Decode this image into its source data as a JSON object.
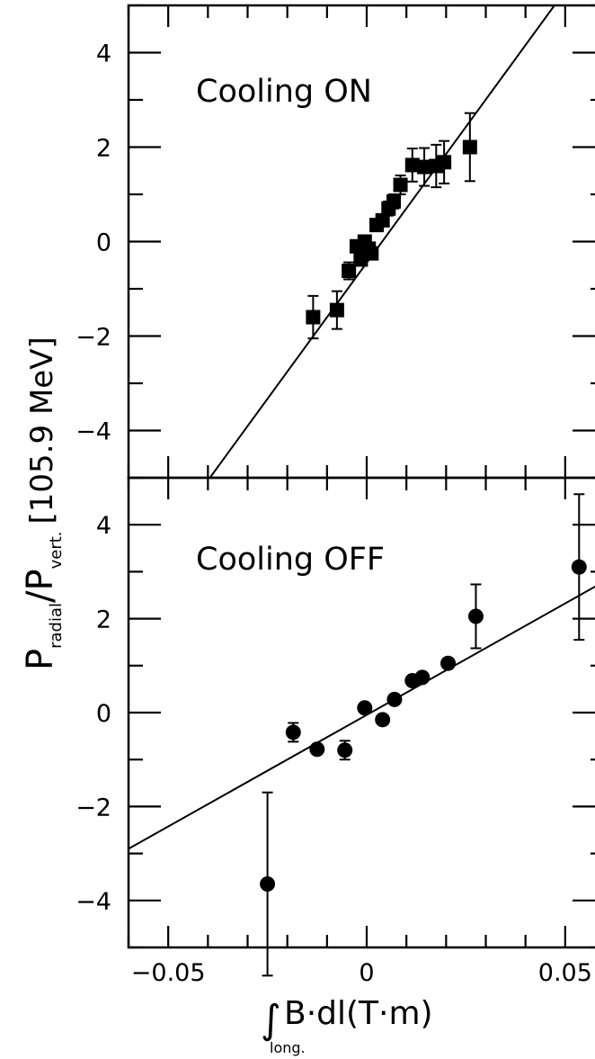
{
  "chart_data": [
    {
      "type": "scatter",
      "panel_label": "Cooling ON",
      "marker": "square",
      "xlim": [
        -0.06,
        0.06
      ],
      "ylim": [
        -5,
        5
      ],
      "yticks": [
        -4,
        -2,
        0,
        2,
        4
      ],
      "ytick_labels": [
        "−4",
        "−2",
        "0",
        "2",
        "4"
      ],
      "points": [
        {
          "x": -0.0135,
          "y": -1.6,
          "err": 0.45
        },
        {
          "x": -0.0075,
          "y": -1.45,
          "err": 0.4
        },
        {
          "x": -0.0045,
          "y": -0.62,
          "err": 0.18
        },
        {
          "x": -0.0025,
          "y": -0.1,
          "err": 0.12
        },
        {
          "x": -0.0015,
          "y": -0.38,
          "err": 0.12
        },
        {
          "x": -0.0005,
          "y": 0.0,
          "err": 0.12
        },
        {
          "x": 0.0005,
          "y": -0.15,
          "err": 0.12
        },
        {
          "x": 0.0012,
          "y": -0.25,
          "err": 0.12
        },
        {
          "x": 0.0025,
          "y": 0.35,
          "err": 0.12
        },
        {
          "x": 0.004,
          "y": 0.45,
          "err": 0.12
        },
        {
          "x": 0.0055,
          "y": 0.7,
          "err": 0.15
        },
        {
          "x": 0.0068,
          "y": 0.85,
          "err": 0.15
        },
        {
          "x": 0.0085,
          "y": 1.2,
          "err": 0.2
        },
        {
          "x": 0.0115,
          "y": 1.62,
          "err": 0.35
        },
        {
          "x": 0.0145,
          "y": 1.58,
          "err": 0.4
        },
        {
          "x": 0.0175,
          "y": 1.6,
          "err": 0.45
        },
        {
          "x": 0.0195,
          "y": 1.68,
          "err": 0.45
        },
        {
          "x": 0.026,
          "y": 2.0,
          "err": 0.72
        }
      ],
      "fit_line": {
        "x": [
          -0.0395,
          0.0473
        ],
        "y": [
          -5,
          5
        ]
      }
    },
    {
      "type": "scatter",
      "panel_label": "Cooling OFF",
      "marker": "circle",
      "xlim": [
        -0.06,
        0.06
      ],
      "ylim": [
        -5,
        5
      ],
      "yticks": [
        -4,
        -2,
        0,
        2,
        4
      ],
      "ytick_labels": [
        "−4",
        "−2",
        "0",
        "2",
        "4"
      ],
      "xticks": [
        -0.05,
        0,
        0.05
      ],
      "xtick_labels": [
        "−0.05",
        "0",
        "0.05"
      ],
      "points": [
        {
          "x": -0.025,
          "y": -3.65,
          "err": 1.95
        },
        {
          "x": -0.0185,
          "y": -0.42,
          "err": 0.2
        },
        {
          "x": -0.0125,
          "y": -0.78,
          "err": 0.0
        },
        {
          "x": -0.0055,
          "y": -0.8,
          "err": 0.2
        },
        {
          "x": -0.0005,
          "y": 0.1,
          "err": 0.0
        },
        {
          "x": 0.004,
          "y": -0.15,
          "err": 0.0
        },
        {
          "x": 0.007,
          "y": 0.28,
          "err": 0.0
        },
        {
          "x": 0.0115,
          "y": 0.68,
          "err": 0.0
        },
        {
          "x": 0.014,
          "y": 0.75,
          "err": 0.0
        },
        {
          "x": 0.0205,
          "y": 1.05,
          "err": 0.0
        },
        {
          "x": 0.0275,
          "y": 2.05,
          "err": 0.68
        },
        {
          "x": 0.0535,
          "y": 3.1,
          "err": 1.55
        }
      ],
      "fit_line": {
        "x": [
          -0.06,
          0.06
        ],
        "y": [
          -2.9,
          2.8
        ]
      }
    }
  ],
  "axes": {
    "ylabel_main": "P",
    "ylabel_sub1": "radial",
    "ylabel_slash": "/P",
    "ylabel_sub2": "vert.",
    "ylabel_tail": "[105.9 MeV]",
    "xlabel_integral": "∫",
    "xlabel_sub": "long.",
    "xlabel_main": "B·dl(T·m)"
  }
}
